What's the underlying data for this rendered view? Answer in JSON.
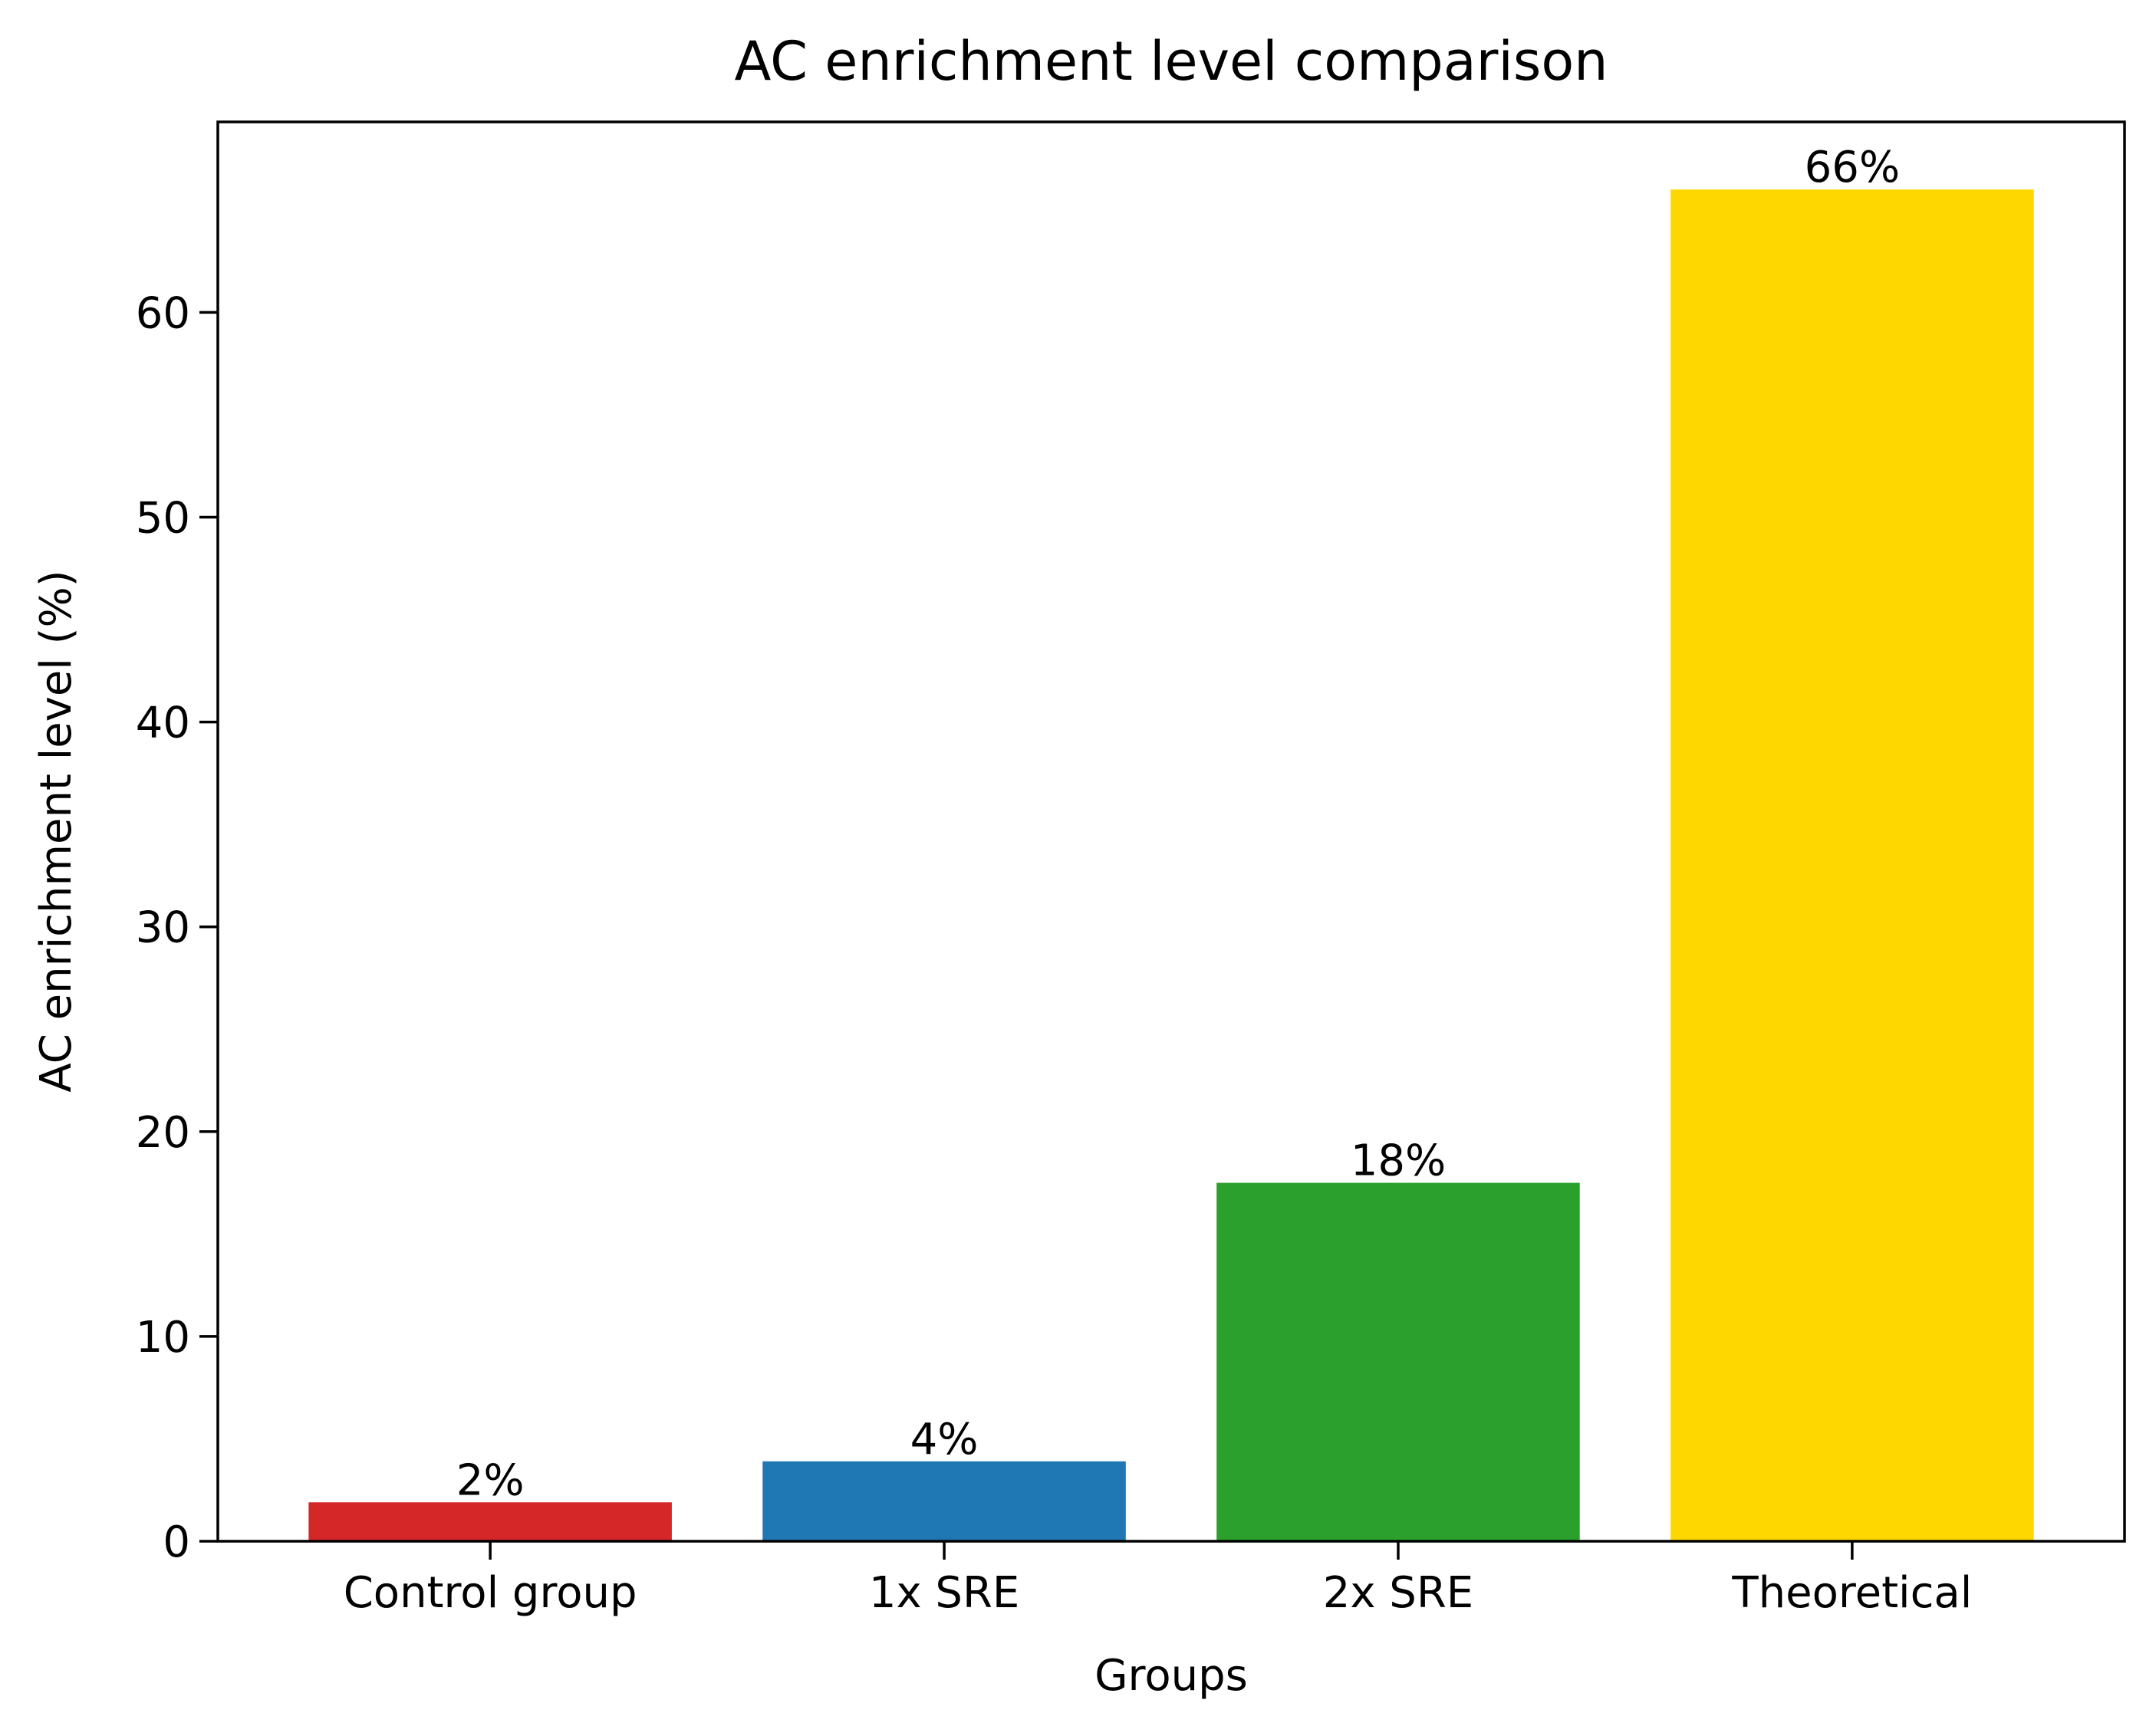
{
  "chart_data": {
    "type": "bar",
    "title": "AC enrichment level comparison",
    "xlabel": "Groups",
    "ylabel": "AC enrichment level (%)",
    "categories": [
      "Control group",
      "1x SRE",
      "2x SRE",
      "Theoretical"
    ],
    "values": [
      1.9,
      3.9,
      17.5,
      66.0
    ],
    "data_labels": [
      "2%",
      "4%",
      "18%",
      "66%"
    ],
    "colors": [
      "#d62728",
      "#1f77b4",
      "#2ca02c",
      "#ffd700"
    ],
    "ylim": [
      0,
      69.3
    ],
    "yticks": [
      0,
      10,
      20,
      30,
      40,
      50,
      60
    ],
    "grid": false,
    "legend": "none"
  }
}
